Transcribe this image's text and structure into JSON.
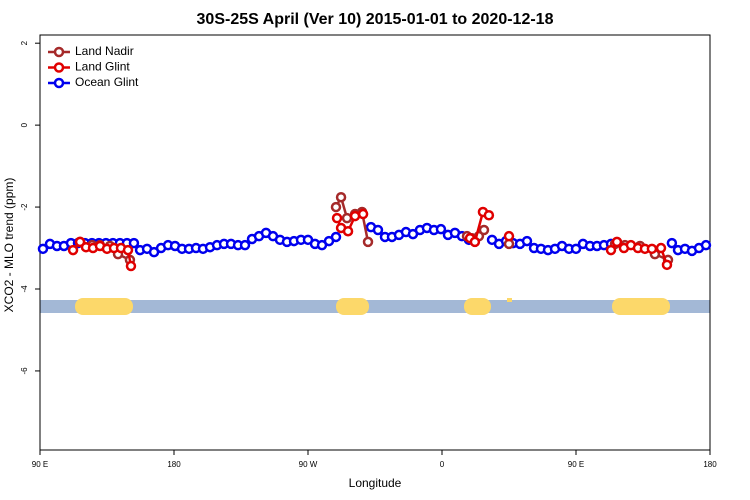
{
  "chart_data": {
    "type": "line",
    "title": "30S-25S April (Ver 10)   2015-01-01 to 2020-12-18",
    "xlabel": "Longitude",
    "ylabel": "XCO2 - MLO trend (ppm)",
    "xlim": [
      90,
      540
    ],
    "ylim": [
      -7.93,
      2.2
    ],
    "xticks": [
      {
        "value": 90,
        "label": "90 E"
      },
      180,
      {
        "value": 270,
        "label": "90 W"
      },
      {
        "value": 360,
        "label": "0"
      },
      {
        "value": 450,
        "label": "90 E"
      },
      {
        "value": 540,
        "label": "180"
      }
    ],
    "yticks": [
      -6,
      -4,
      -2,
      0,
      2
    ],
    "legend": "top-left",
    "series": [
      {
        "name": "Land Nadir",
        "color": "#a52a2a",
        "x": [
          116.9,
          125.0,
          130.3,
          137.0,
          142.4,
          150.4,
          null,
          288.8,
          292.2,
          296.2,
          301.6,
          306.3,
          310.3,
          null,
          376.8,
          380.1,
          384.8,
          388.2,
          null,
          405.0,
          null,
          476.2,
          482.9,
          493.0,
          503.0,
          511.8
        ],
        "values": [
          -2.85,
          -2.93,
          -2.93,
          -2.95,
          -3.15,
          -3.29,
          null,
          -2.0,
          -1.76,
          -2.27,
          -2.17,
          -2.12,
          -2.85,
          null,
          -2.71,
          -2.76,
          -2.71,
          -2.56,
          null,
          -2.9,
          null,
          -2.9,
          -2.93,
          -2.95,
          -3.15,
          -3.29
        ]
      },
      {
        "name": "Land Glint",
        "color": "#e00000",
        "x": [
          112.2,
          116.9,
          120.9,
          125.6,
          130.3,
          135.0,
          139.7,
          144.4,
          149.1,
          151.1,
          null,
          289.5,
          292.2,
          296.9,
          301.6,
          307.0,
          null,
          378.8,
          382.1,
          387.5,
          391.5,
          null,
          405.0,
          null,
          473.5,
          477.5,
          482.2,
          486.9,
          491.6,
          496.3,
          501.0,
          507.1,
          511.1
        ],
        "values": [
          -3.05,
          -2.85,
          -2.98,
          -3.0,
          -2.95,
          -3.02,
          -3.0,
          -3.0,
          -3.05,
          -3.44,
          null,
          -2.27,
          -2.51,
          -2.59,
          -2.22,
          -2.17,
          null,
          -2.76,
          -2.85,
          -2.12,
          -2.2,
          null,
          -2.71,
          null,
          -3.05,
          -2.85,
          -3.0,
          -2.93,
          -3.0,
          -3.02,
          -3.02,
          -3.0,
          -3.41
        ]
      },
      {
        "name": "Ocean Glint",
        "color": "#0000ee",
        "x": [
          92.0,
          96.7,
          101.4,
          106.1,
          110.8,
          115.5,
          120.2,
          124.9,
          129.6,
          134.3,
          139.0,
          143.7,
          148.4,
          153.1,
          157.2,
          161.9,
          166.6,
          171.3,
          176.0,
          180.7,
          185.4,
          190.1,
          194.8,
          199.5,
          204.2,
          208.9,
          213.6,
          218.3,
          223.0,
          227.7,
          232.4,
          237.1,
          241.8,
          246.5,
          251.2,
          255.9,
          260.6,
          265.3,
          270.0,
          274.7,
          279.4,
          284.1,
          288.8,
          null,
          312.3,
          317.0,
          321.7,
          326.4,
          331.1,
          335.8,
          340.5,
          345.2,
          349.9,
          354.6,
          359.3,
          364.0,
          368.7,
          373.4,
          378.1,
          null,
          393.6,
          398.3,
          403.0,
          407.7,
          412.4,
          417.1,
          421.8,
          426.5,
          431.2,
          435.9,
          440.6,
          445.3,
          450.0,
          454.7,
          459.4,
          464.1,
          468.8,
          473.5,
          null,
          514.4,
          518.5,
          523.2,
          527.9,
          532.6,
          537.3
        ],
        "values": [
          -3.02,
          -2.9,
          -2.95,
          -2.95,
          -2.88,
          -2.88,
          -2.88,
          -2.88,
          -2.88,
          -2.88,
          -2.88,
          -2.88,
          -2.88,
          -2.88,
          -3.05,
          -3.02,
          -3.1,
          -3.0,
          -2.93,
          -2.95,
          -3.02,
          -3.02,
          -3.0,
          -3.02,
          -2.98,
          -2.93,
          -2.9,
          -2.9,
          -2.93,
          -2.93,
          -2.78,
          -2.71,
          -2.63,
          -2.71,
          -2.8,
          -2.85,
          -2.83,
          -2.8,
          -2.8,
          -2.9,
          -2.93,
          -2.83,
          -2.73,
          null,
          -2.49,
          -2.56,
          -2.73,
          -2.73,
          -2.68,
          -2.61,
          -2.66,
          -2.56,
          -2.51,
          -2.56,
          -2.54,
          -2.68,
          -2.63,
          -2.71,
          -2.8,
          null,
          -2.8,
          -2.9,
          -2.83,
          -2.88,
          -2.9,
          -2.83,
          -3.0,
          -3.02,
          -3.05,
          -3.02,
          -2.95,
          -3.02,
          -3.02,
          -2.9,
          -2.95,
          -2.95,
          -2.93,
          -2.9,
          null,
          -2.88,
          -3.05,
          -3.02,
          -3.07,
          -3.0,
          -2.93
        ]
      }
    ]
  }
}
